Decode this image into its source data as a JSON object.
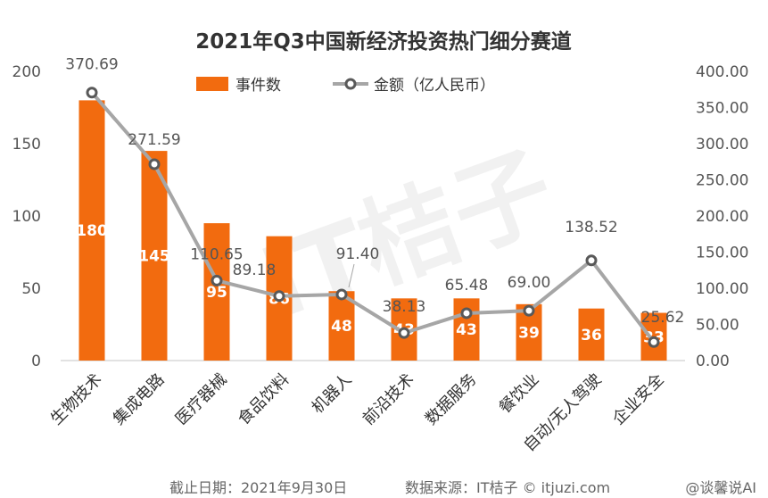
{
  "chart_data": {
    "type": "bar",
    "title": "2021年Q3中国新经济投资热门细分赛道",
    "categories": [
      "生物技术",
      "集成电路",
      "医疗器械",
      "食品饮料",
      "机器人",
      "前沿技术",
      "数据服务",
      "餐饮业",
      "自动/无人驾驶",
      "企业安全"
    ],
    "series": [
      {
        "name": "事件数",
        "type": "bar",
        "axis": "left",
        "color": "#F26B0F",
        "values": [
          180,
          145,
          95,
          86,
          48,
          43,
          43,
          39,
          36,
          33
        ]
      },
      {
        "name": "金额（亿人民币）",
        "type": "line",
        "axis": "right",
        "color": "#A6A6A6",
        "values": [
          370.69,
          271.59,
          110.65,
          89.18,
          91.4,
          38.13,
          65.48,
          69.0,
          138.52,
          25.62
        ]
      }
    ],
    "bar_value_labels": [
      "180",
      "145",
      "95",
      "86",
      "48",
      "43",
      "43",
      "39",
      "36",
      "33"
    ],
    "line_value_labels": [
      "370.69",
      "271.59",
      "110.65",
      "89.18",
      "91.40",
      "38.13",
      "65.48",
      "69.00",
      "138.52",
      "25.62"
    ],
    "ylim_left": [
      0,
      200
    ],
    "yticks_left": [
      "0",
      "50",
      "100",
      "150",
      "200"
    ],
    "ylim_right": [
      0,
      400
    ],
    "yticks_right": [
      "0.00",
      "50.00",
      "100.00",
      "150.00",
      "200.00",
      "250.00",
      "300.00",
      "350.00",
      "400.00"
    ],
    "legend_position": "top-center",
    "grid": false
  },
  "footer": {
    "cutoff": "截止日期：2021年9月30日",
    "source": "数据来源：IT桔子 © itjuzi.com"
  },
  "watermarks": {
    "center": "IT桔子",
    "corner": "@谈馨说AI"
  }
}
